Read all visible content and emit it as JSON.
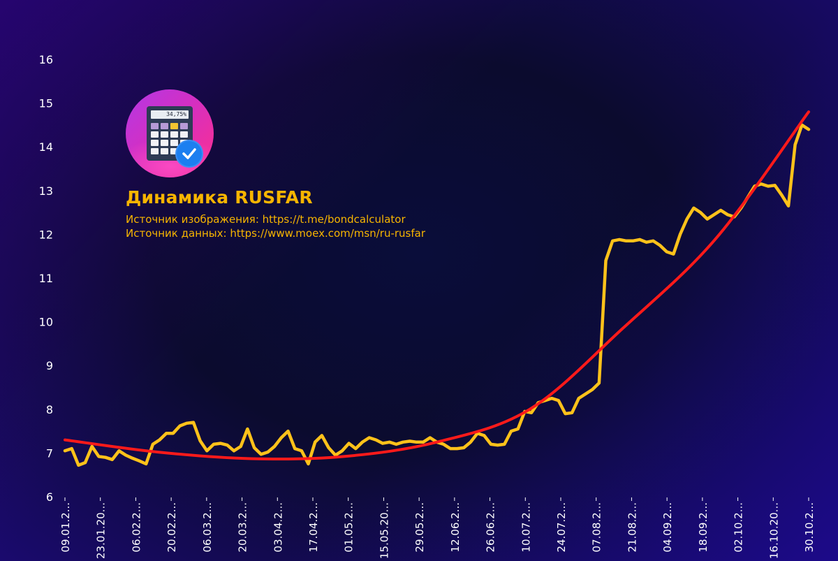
{
  "header": {
    "title": "Динамика RUSFAR",
    "image_source": "Источник изображения: https://t.me/bondcalculator",
    "data_source": "Источник данных: https://www.moex.com/msn/ru-rusfar"
  },
  "logo": {
    "icon": "calculator-verified-icon",
    "screen_text": "34,75%"
  },
  "colors": {
    "series": "#ffc21a",
    "trend": "#ff1a1a",
    "text": "#f7b500",
    "axis_text": "#ffffff"
  },
  "chart_data": {
    "type": "line",
    "title": "Динамика RUSFAR",
    "xlabel": "",
    "ylabel": "",
    "ylim": [
      6,
      16
    ],
    "yticks": [
      "6",
      "7",
      "8",
      "9",
      "10",
      "11",
      "12",
      "13",
      "14",
      "15",
      "16"
    ],
    "x_tick_labels": [
      "09.01.2...",
      "23.01.20...",
      "06.02.2...",
      "20.02.2...",
      "06.03.2...",
      "20.03.2...",
      "03.04.2...",
      "17.04.2...",
      "01.05.2...",
      "15.05.20...",
      "29.05.2...",
      "12.06.2...",
      "26.06.2...",
      "10.07.2...",
      "24.07.2...",
      "07.08.2...",
      "21.08.2...",
      "04.09.2...",
      "18.09.2...",
      "02.10.2...",
      "16.10.20...",
      "30.10.2..."
    ],
    "grid": false,
    "legend": "none",
    "series": [
      {
        "values": [
          7.05,
          7.1,
          6.72,
          6.78,
          7.15,
          6.92,
          6.9,
          6.85,
          7.05,
          6.95,
          6.88,
          6.82,
          6.75,
          7.2,
          7.3,
          7.45,
          7.45,
          7.62,
          7.68,
          7.7,
          7.28,
          7.05,
          7.2,
          7.22,
          7.18,
          7.05,
          7.15,
          7.55,
          7.12,
          6.97,
          7.02,
          7.15,
          7.35,
          7.5,
          7.1,
          7.05,
          6.75,
          7.25,
          7.4,
          7.12,
          6.95,
          7.05,
          7.22,
          7.1,
          7.25,
          7.35,
          7.3,
          7.22,
          7.25,
          7.2,
          7.25,
          7.27,
          7.25,
          7.25,
          7.35,
          7.25,
          7.2,
          7.1,
          7.1,
          7.12,
          7.25,
          7.45,
          7.4,
          7.2,
          7.18,
          7.2,
          7.5,
          7.55,
          7.95,
          7.92,
          8.15,
          8.2,
          8.25,
          8.2,
          7.9,
          7.92,
          8.25,
          8.35,
          8.45,
          8.6,
          11.4,
          11.85,
          11.88,
          11.85,
          11.85,
          11.88,
          11.82,
          11.85,
          11.75,
          11.6,
          11.55,
          12.0,
          12.35,
          12.6,
          12.5,
          12.35,
          12.45,
          12.55,
          12.45,
          12.4,
          12.6,
          12.85,
          13.1,
          13.15,
          13.1,
          13.12,
          12.9,
          12.65,
          14.05,
          14.5,
          14.4
        ]
      },
      {
        "values": [
          7.3,
          7.02,
          6.87,
          6.92,
          7.25,
          8.0,
          9.85,
          11.9,
          14.8
        ]
      }
    ]
  }
}
